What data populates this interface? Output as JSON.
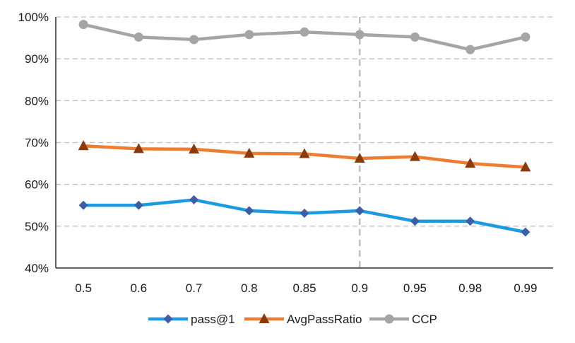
{
  "chart_data": {
    "type": "line",
    "title": "",
    "xlabel": "",
    "ylabel": "",
    "categories": [
      "0.5",
      "0.6",
      "0.7",
      "0.8",
      "0.85",
      "0.9",
      "0.95",
      "0.98",
      "0.99"
    ],
    "ylim": [
      40,
      100
    ],
    "y_ticks": [
      40,
      50,
      60,
      70,
      80,
      90,
      100
    ],
    "y_tick_labels": [
      "40%",
      "50%",
      "60%",
      "70%",
      "80%",
      "90%",
      "100%"
    ],
    "grid": "horizontal dashed",
    "reference_line_category": "0.9",
    "legend_position": "bottom",
    "series": [
      {
        "name": "pass@1",
        "color": "#1e9be0",
        "marker": "diamond",
        "marker_color": "#3a5ea8",
        "values": [
          55.0,
          55.0,
          56.3,
          53.7,
          53.1,
          53.7,
          51.2,
          51.2,
          48.6
        ]
      },
      {
        "name": "AvgPassRatio",
        "color": "#ed7d31",
        "marker": "triangle",
        "marker_color": "#8b3a0e",
        "values": [
          69.2,
          68.5,
          68.4,
          67.4,
          67.3,
          66.2,
          66.6,
          65.0,
          64.1
        ]
      },
      {
        "name": "CCP",
        "color": "#a5a5a5",
        "marker": "circle",
        "marker_color": "#a5a5a5",
        "values": [
          98.2,
          95.2,
          94.6,
          95.8,
          96.4,
          95.8,
          95.2,
          92.2,
          95.2
        ]
      }
    ]
  }
}
